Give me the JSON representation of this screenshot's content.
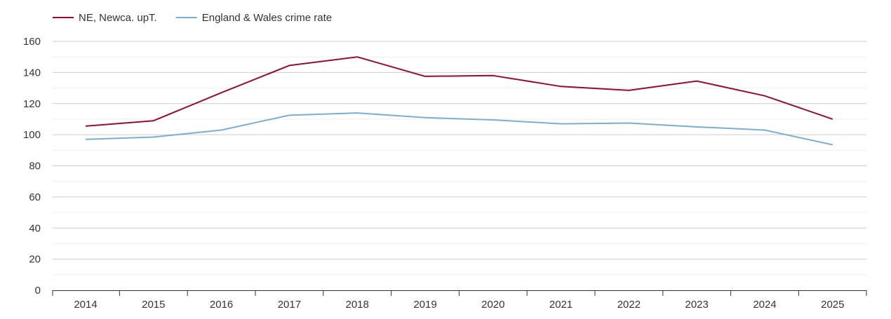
{
  "chart_data": {
    "type": "line",
    "x": [
      "2014",
      "2015",
      "2016",
      "2017",
      "2018",
      "2019",
      "2020",
      "2021",
      "2022",
      "2023",
      "2024",
      "2025"
    ],
    "series": [
      {
        "name": "NE, Newca. upT.",
        "color": "#9b0a32",
        "values": [
          105.5,
          109,
          127,
          144.5,
          150,
          137.5,
          138,
          131,
          128.5,
          134.5,
          125,
          110
        ]
      },
      {
        "name": "England & Wales crime rate",
        "color": "#7aaed3",
        "values": [
          97,
          98.5,
          103,
          112.5,
          114,
          111,
          109.5,
          107,
          107.5,
          105,
          103,
          93.5
        ]
      }
    ],
    "yticks": [
      "0",
      "20",
      "40",
      "60",
      "80",
      "100",
      "120",
      "140",
      "160"
    ],
    "ylim": [
      0,
      160
    ],
    "grid": true,
    "legend": "top-left"
  }
}
